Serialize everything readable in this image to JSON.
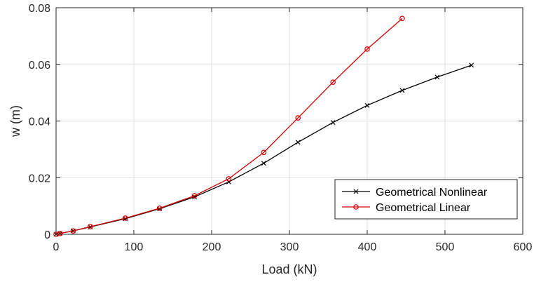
{
  "chart_data": {
    "type": "line",
    "title": "",
    "xlabel": "Load (kN)",
    "ylabel": "w (m)",
    "xlim": [
      0,
      600
    ],
    "ylim": [
      0,
      0.08
    ],
    "xticks": [
      0,
      100,
      200,
      300,
      400,
      500,
      600
    ],
    "yticks": [
      0,
      0.02,
      0.04,
      0.06,
      0.08
    ],
    "xtick_labels": [
      "0",
      "100",
      "200",
      "300",
      "400",
      "500",
      "600"
    ],
    "ytick_labels": [
      "0",
      "0.02",
      "0.04",
      "0.06",
      "0.08"
    ],
    "grid": true,
    "legend_position": "lower-right",
    "series": [
      {
        "name": "Geometrical Nonlinear",
        "color": "#000000",
        "marker": "x",
        "x": [
          0,
          5,
          22,
          44,
          89,
          133,
          178,
          222,
          267,
          311,
          356,
          400,
          445,
          490,
          534
        ],
        "y": [
          0,
          0.0003,
          0.0012,
          0.0026,
          0.0055,
          0.009,
          0.0132,
          0.0185,
          0.0251,
          0.0325,
          0.0395,
          0.0455,
          0.0508,
          0.0555,
          0.0597
        ]
      },
      {
        "name": "Geometrical Linear",
        "color": "#d40000",
        "marker": "o",
        "x": [
          0,
          5,
          22,
          44,
          89,
          133,
          178,
          222,
          267,
          311,
          356,
          400,
          445
        ],
        "y": [
          0,
          0.0003,
          0.0012,
          0.0027,
          0.0057,
          0.0092,
          0.0136,
          0.0196,
          0.0289,
          0.0411,
          0.0537,
          0.0654,
          0.0762
        ]
      }
    ]
  }
}
